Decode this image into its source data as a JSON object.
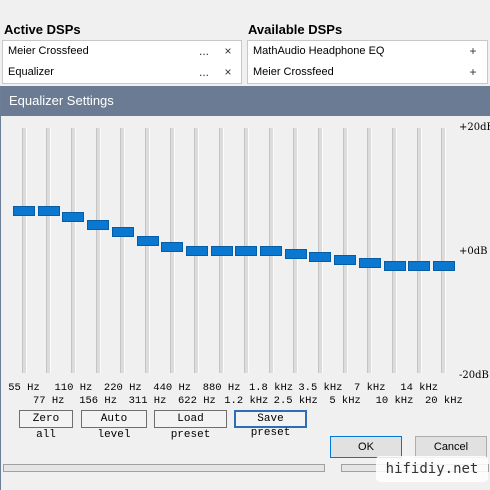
{
  "active_dsps": {
    "title": "Active DSPs",
    "items": [
      {
        "label": "Meier Crossfeed",
        "config": "...",
        "remove": "×"
      },
      {
        "label": "Equalizer",
        "config": "...",
        "remove": "×"
      }
    ]
  },
  "available_dsps": {
    "title": "Available DSPs",
    "items": [
      {
        "label": "MathAudio Headphone EQ",
        "add": "+"
      },
      {
        "label": "Meier Crossfeed",
        "add": "+"
      }
    ]
  },
  "dialog": {
    "title": "Equalizer Settings",
    "db_scale": {
      "top": "+20dB",
      "mid": "+0dB",
      "bottom": "-20dB"
    },
    "bands": [
      {
        "label": "55 Hz",
        "gain_db": 6.5
      },
      {
        "label": "77 Hz",
        "gain_db": 6.5
      },
      {
        "label": "110 Hz",
        "gain_db": 5.5
      },
      {
        "label": "156 Hz",
        "gain_db": 4.2
      },
      {
        "label": "220 Hz",
        "gain_db": 3.0
      },
      {
        "label": "311 Hz",
        "gain_db": 1.5
      },
      {
        "label": "440 Hz",
        "gain_db": 0.5
      },
      {
        "label": "622 Hz",
        "gain_db": 0.0
      },
      {
        "label": "880 Hz",
        "gain_db": 0.0
      },
      {
        "label": "1.2 kHz",
        "gain_db": 0.0
      },
      {
        "label": "1.8 kHz",
        "gain_db": 0.0
      },
      {
        "label": "2.5 kHz",
        "gain_db": -0.5
      },
      {
        "label": "3.5 kHz",
        "gain_db": -1.0
      },
      {
        "label": "5 kHz",
        "gain_db": -1.5
      },
      {
        "label": "7 kHz",
        "gain_db": -2.0
      },
      {
        "label": "10 kHz",
        "gain_db": -2.5
      },
      {
        "label": "14 kHz",
        "gain_db": -2.5
      },
      {
        "label": "20 kHz",
        "gain_db": -2.5
      }
    ],
    "buttons": {
      "zero_all": "Zero all",
      "auto_level": "Auto level",
      "load_preset": "Load preset",
      "save_preset": "Save preset",
      "ok": "OK",
      "cancel": "Cancel"
    }
  },
  "watermark": "hifidiy.net"
}
